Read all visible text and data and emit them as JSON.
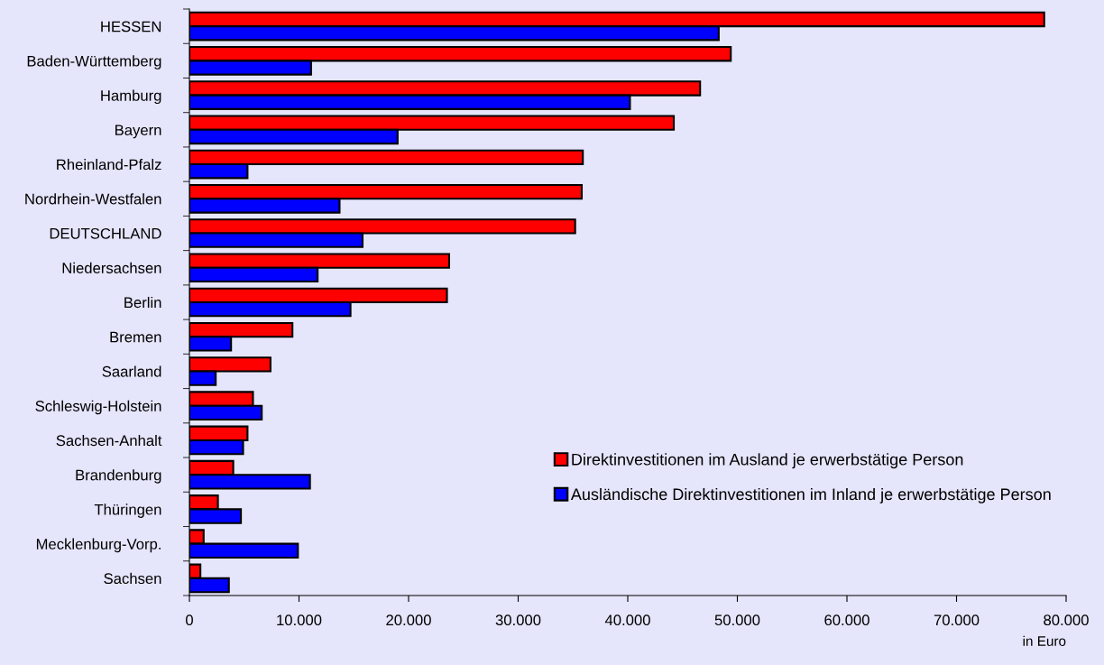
{
  "chart_data": {
    "type": "bar",
    "orientation": "horizontal",
    "xlabel": "in Euro",
    "categories": [
      "HESSEN",
      "Baden-Württemberg",
      "Hamburg",
      "Bayern",
      "Rheinland-Pfalz",
      "Nordrhein-Westfalen",
      "DEUTSCHLAND",
      "Niedersachsen",
      "Berlin",
      "Bremen",
      "Saarland",
      "Schleswig-Holstein",
      "Sachsen-Anhalt",
      "Brandenburg",
      "Thüringen",
      "Mecklenburg-Vorp.",
      "Sachsen"
    ],
    "series": [
      {
        "name": "Direktinvestitionen im Ausland je erwerbstätige Person",
        "color": "#ff0000",
        "values": [
          78000,
          49400,
          46600,
          44200,
          35900,
          35800,
          35200,
          23700,
          23500,
          9400,
          7400,
          5800,
          5300,
          4000,
          2600,
          1300,
          1000
        ]
      },
      {
        "name": "Ausländische Direktinvestitionen im Inland je erwerbstätige Person",
        "color": "#0000ff",
        "values": [
          48300,
          11100,
          40200,
          19000,
          5300,
          13700,
          15800,
          11700,
          14700,
          3800,
          2400,
          6600,
          4900,
          11000,
          4700,
          9900,
          3600
        ]
      }
    ],
    "xlim": [
      0,
      80000
    ],
    "xticks": [
      0,
      {
        "value": 10000,
        "label": "10.000"
      },
      {
        "value": 20000,
        "label": "20.000"
      },
      {
        "value": 30000,
        "label": "30.000"
      },
      {
        "value": 40000,
        "label": "40.000"
      },
      {
        "value": 50000,
        "label": "50.000"
      },
      {
        "value": 60000,
        "label": "60.000"
      },
      {
        "value": 70000,
        "label": "70.000"
      },
      {
        "value": 80000,
        "label": "80.000"
      }
    ],
    "grid": false,
    "legend": "right"
  }
}
